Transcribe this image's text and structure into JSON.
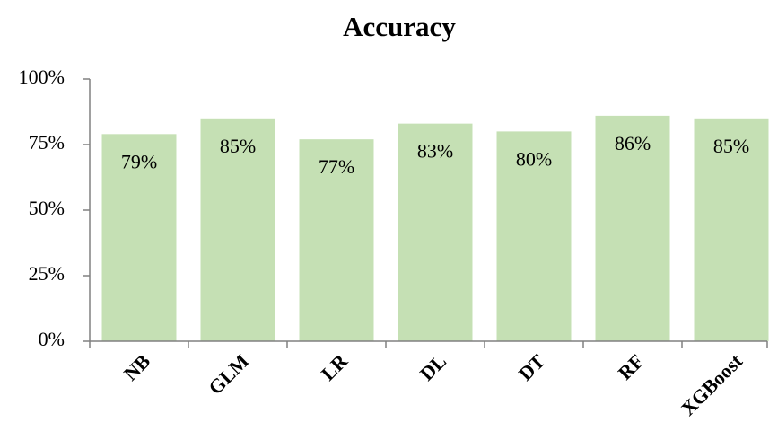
{
  "chart_data": {
    "type": "bar",
    "title": "Accuracy",
    "categories": [
      "NB",
      "GLM",
      "LR",
      "DL",
      "DT",
      "RF",
      "XGBoost"
    ],
    "values": [
      79,
      85,
      77,
      83,
      80,
      86,
      85
    ],
    "value_labels": [
      "79%",
      "85%",
      "77%",
      "83%",
      "80%",
      "86%",
      "85%"
    ],
    "color": "#c5e0b4",
    "ylim": [
      0,
      100
    ],
    "yticks": [
      {
        "value": 0,
        "label": "0%"
      },
      {
        "value": 25,
        "label": "25%"
      },
      {
        "value": 50,
        "label": "50%"
      },
      {
        "value": 75,
        "label": "75%"
      },
      {
        "value": 100,
        "label": "100%"
      }
    ],
    "grid": false
  }
}
